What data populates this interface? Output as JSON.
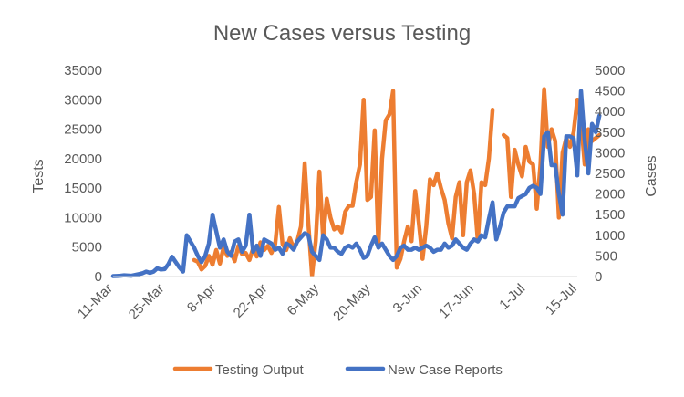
{
  "chart_data": {
    "type": "line",
    "title": "New Cases versus Testing",
    "ylabel_left": "Tests",
    "ylabel_right": "Cases",
    "ylim_left": [
      0,
      35000
    ],
    "ylim_right": [
      0,
      5000
    ],
    "yticks_left": [
      "0",
      "5000",
      "10000",
      "15000",
      "20000",
      "25000",
      "30000",
      "35000"
    ],
    "yticks_right": [
      "0",
      "500",
      "1000",
      "1500",
      "2000",
      "2500",
      "3000",
      "3500",
      "4000",
      "4500",
      "5000"
    ],
    "x_start": "11-Mar",
    "x_end": "15-Jul",
    "xticks": [
      "11-Mar",
      "25-Mar",
      "8-Apr",
      "22-Apr",
      "6-May",
      "20-May",
      "3-Jun",
      "17-Jun",
      "1-Jul",
      "15-Jul"
    ],
    "grid": false,
    "legend_position": "bottom",
    "series": [
      {
        "name": "Testing Output",
        "axis": "left",
        "color": "#ED7D31",
        "points": [
          [
            22,
            2800
          ],
          [
            23,
            2500
          ],
          [
            24,
            1200
          ],
          [
            25,
            1800
          ],
          [
            26,
            3500
          ],
          [
            27,
            2000
          ],
          [
            28,
            4500
          ],
          [
            29,
            2200
          ],
          [
            30,
            5000
          ],
          [
            31,
            3500
          ],
          [
            32,
            4200
          ],
          [
            33,
            2600
          ],
          [
            34,
            5200
          ],
          [
            35,
            3800
          ],
          [
            36,
            4000
          ],
          [
            37,
            2800
          ],
          [
            38,
            4800
          ],
          [
            39,
            3400
          ],
          [
            40,
            5800
          ],
          [
            41,
            4500
          ],
          [
            42,
            5200
          ],
          [
            43,
            4000
          ],
          [
            44,
            5500
          ],
          [
            45,
            11800
          ],
          [
            46,
            5500
          ],
          [
            47,
            4500
          ],
          [
            48,
            6500
          ],
          [
            49,
            4800
          ],
          [
            50,
            6000
          ],
          [
            51,
            8500
          ],
          [
            52,
            19200
          ],
          [
            53,
            9000
          ],
          [
            54,
            200
          ],
          [
            55,
            6000
          ],
          [
            56,
            17800
          ],
          [
            57,
            6500
          ],
          [
            58,
            13200
          ],
          [
            59,
            10000
          ],
          [
            60,
            8000
          ],
          [
            61,
            8500
          ],
          [
            62,
            7500
          ],
          [
            63,
            11000
          ],
          [
            64,
            12000
          ],
          [
            65,
            12000
          ],
          [
            66,
            16000
          ],
          [
            67,
            19000
          ],
          [
            68,
            30000
          ],
          [
            69,
            13000
          ],
          [
            70,
            13500
          ],
          [
            71,
            24800
          ],
          [
            72,
            5000
          ],
          [
            73,
            20000
          ],
          [
            74,
            26500
          ],
          [
            75,
            27500
          ],
          [
            76,
            31500
          ],
          [
            77,
            1500
          ],
          [
            78,
            3000
          ],
          [
            79,
            6000
          ],
          [
            80,
            8500
          ],
          [
            81,
            6000
          ],
          [
            82,
            14500
          ],
          [
            83,
            9000
          ],
          [
            84,
            3000
          ],
          [
            85,
            8500
          ],
          [
            86,
            16500
          ],
          [
            87,
            15500
          ],
          [
            88,
            17500
          ],
          [
            89,
            15000
          ],
          [
            90,
            13000
          ],
          [
            91,
            9000
          ],
          [
            92,
            6500
          ],
          [
            93,
            13500
          ],
          [
            94,
            16000
          ],
          [
            95,
            7000
          ],
          [
            96,
            16000
          ],
          [
            97,
            18000
          ],
          [
            98,
            14000
          ],
          [
            99,
            6000
          ],
          [
            100,
            16000
          ],
          [
            101,
            15500
          ],
          [
            102,
            20000
          ],
          [
            103,
            28300
          ],
          [
            106,
            24000
          ],
          [
            107,
            23500
          ],
          [
            108,
            13500
          ],
          [
            109,
            21500
          ],
          [
            110,
            19000
          ],
          [
            111,
            17000
          ],
          [
            112,
            22000
          ],
          [
            113,
            19500
          ],
          [
            114,
            19000
          ],
          [
            115,
            11500
          ],
          [
            116,
            19000
          ],
          [
            117,
            31800
          ],
          [
            118,
            22000
          ],
          [
            119,
            25000
          ],
          [
            120,
            23000
          ],
          [
            121,
            10000
          ],
          [
            122,
            21000
          ],
          [
            123,
            23500
          ],
          [
            124,
            22000
          ],
          [
            125,
            24500
          ],
          [
            126,
            30000
          ],
          [
            127,
            26500
          ],
          [
            128,
            19000
          ],
          [
            129,
            25000
          ],
          [
            130,
            23000
          ],
          [
            131,
            23500
          ],
          [
            132,
            24000
          ]
        ]
      },
      {
        "name": "New Case Reports",
        "axis": "right",
        "color": "#4472C4",
        "points": [
          [
            0,
            10
          ],
          [
            1,
            15
          ],
          [
            2,
            20
          ],
          [
            3,
            30
          ],
          [
            4,
            25
          ],
          [
            5,
            20
          ],
          [
            6,
            40
          ],
          [
            7,
            60
          ],
          [
            8,
            80
          ],
          [
            9,
            120
          ],
          [
            10,
            90
          ],
          [
            11,
            120
          ],
          [
            12,
            200
          ],
          [
            13,
            170
          ],
          [
            14,
            180
          ],
          [
            15,
            300
          ],
          [
            16,
            480
          ],
          [
            17,
            350
          ],
          [
            18,
            220
          ],
          [
            19,
            120
          ],
          [
            20,
            1000
          ],
          [
            21,
            850
          ],
          [
            22,
            700
          ],
          [
            23,
            500
          ],
          [
            24,
            350
          ],
          [
            25,
            500
          ],
          [
            26,
            800
          ],
          [
            27,
            1500
          ],
          [
            28,
            1100
          ],
          [
            29,
            700
          ],
          [
            30,
            900
          ],
          [
            31,
            600
          ],
          [
            32,
            500
          ],
          [
            33,
            850
          ],
          [
            34,
            900
          ],
          [
            35,
            600
          ],
          [
            36,
            750
          ],
          [
            37,
            1500
          ],
          [
            38,
            600
          ],
          [
            39,
            750
          ],
          [
            40,
            500
          ],
          [
            41,
            900
          ],
          [
            42,
            850
          ],
          [
            43,
            800
          ],
          [
            44,
            650
          ],
          [
            45,
            700
          ],
          [
            46,
            550
          ],
          [
            47,
            800
          ],
          [
            48,
            750
          ],
          [
            49,
            650
          ],
          [
            50,
            850
          ],
          [
            51,
            950
          ],
          [
            52,
            1050
          ],
          [
            53,
            1000
          ],
          [
            54,
            600
          ],
          [
            55,
            500
          ],
          [
            56,
            400
          ],
          [
            57,
            1000
          ],
          [
            58,
            900
          ],
          [
            59,
            700
          ],
          [
            60,
            700
          ],
          [
            61,
            600
          ],
          [
            62,
            550
          ],
          [
            63,
            700
          ],
          [
            64,
            750
          ],
          [
            65,
            700
          ],
          [
            66,
            800
          ],
          [
            67,
            650
          ],
          [
            68,
            450
          ],
          [
            69,
            500
          ],
          [
            70,
            750
          ],
          [
            71,
            950
          ],
          [
            72,
            700
          ],
          [
            73,
            800
          ],
          [
            74,
            650
          ],
          [
            75,
            500
          ],
          [
            76,
            400
          ],
          [
            77,
            500
          ],
          [
            78,
            700
          ],
          [
            79,
            750
          ],
          [
            80,
            650
          ],
          [
            81,
            650
          ],
          [
            82,
            700
          ],
          [
            83,
            650
          ],
          [
            84,
            700
          ],
          [
            85,
            750
          ],
          [
            86,
            700
          ],
          [
            87,
            600
          ],
          [
            88,
            650
          ],
          [
            89,
            650
          ],
          [
            90,
            800
          ],
          [
            91,
            700
          ],
          [
            92,
            750
          ],
          [
            93,
            900
          ],
          [
            94,
            800
          ],
          [
            95,
            700
          ],
          [
            96,
            650
          ],
          [
            97,
            800
          ],
          [
            98,
            900
          ],
          [
            99,
            850
          ],
          [
            100,
            1000
          ],
          [
            101,
            950
          ],
          [
            102,
            1400
          ],
          [
            103,
            1800
          ],
          [
            104,
            900
          ],
          [
            105,
            1200
          ],
          [
            106,
            1550
          ],
          [
            107,
            1700
          ],
          [
            108,
            1700
          ],
          [
            109,
            1700
          ],
          [
            110,
            1900
          ],
          [
            111,
            1950
          ],
          [
            112,
            2000
          ],
          [
            113,
            2150
          ],
          [
            114,
            2200
          ],
          [
            115,
            2150
          ],
          [
            116,
            2000
          ],
          [
            117,
            3400
          ],
          [
            118,
            3500
          ],
          [
            119,
            2700
          ],
          [
            120,
            2700
          ],
          [
            121,
            2000
          ],
          [
            122,
            1500
          ],
          [
            123,
            3400
          ],
          [
            124,
            3400
          ],
          [
            125,
            3350
          ],
          [
            126,
            2450
          ],
          [
            127,
            4500
          ],
          [
            128,
            3300
          ],
          [
            129,
            2500
          ],
          [
            130,
            3700
          ],
          [
            131,
            3500
          ],
          [
            132,
            3900
          ]
        ]
      }
    ]
  }
}
